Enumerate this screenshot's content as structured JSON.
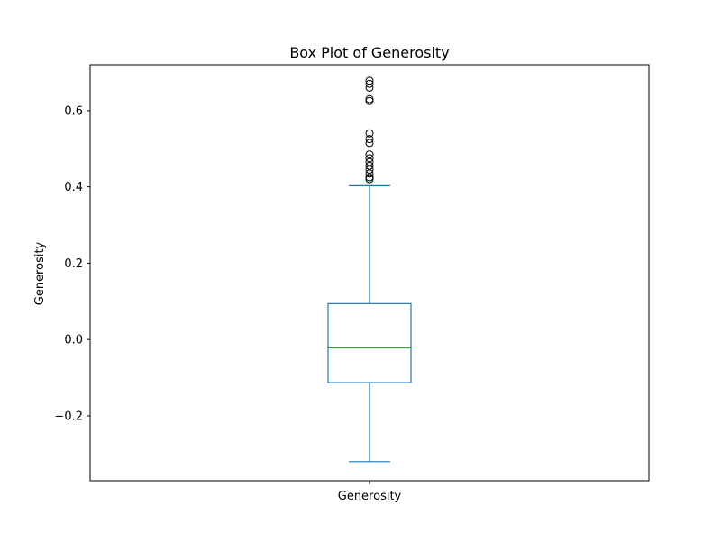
{
  "chart_data": {
    "type": "box",
    "title": "Box Plot of Generosity",
    "xlabel": "",
    "ylabel": "Generosity",
    "categories": [
      "Generosity"
    ],
    "ylim": [
      -0.37,
      0.72
    ],
    "yticks": [
      -0.2,
      0.0,
      0.2,
      0.4,
      0.6
    ],
    "ytick_labels": [
      "−0.2",
      "0.0",
      "0.2",
      "0.4",
      "0.6"
    ],
    "grid": false,
    "box": {
      "whisker_low": -0.32,
      "q1": -0.113,
      "median": -0.022,
      "q3": 0.094,
      "whisker_high": 0.403,
      "outliers": [
        0.42,
        0.425,
        0.435,
        0.445,
        0.455,
        0.465,
        0.475,
        0.485,
        0.515,
        0.525,
        0.54,
        0.625,
        0.63,
        0.66,
        0.67,
        0.678
      ]
    },
    "colors": {
      "box": "#1f77b4",
      "median": "#2ca02c",
      "outlier": "#000000"
    }
  }
}
